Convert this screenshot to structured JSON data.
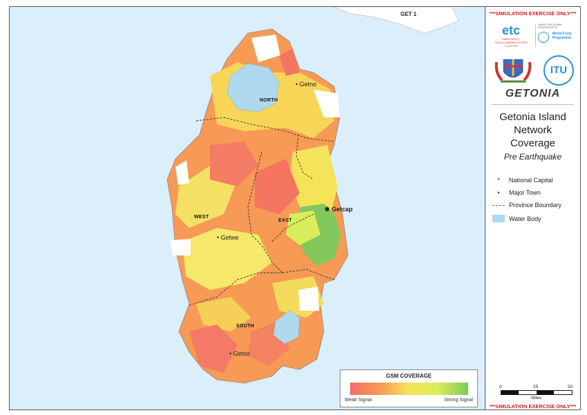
{
  "map": {
    "region_label_get1": "GET 1",
    "towns": [
      {
        "name": "Getno"
      },
      {
        "name": "Getcap"
      },
      {
        "name": "Getwe"
      },
      {
        "name": "Getso"
      }
    ],
    "provinces": [
      "NORTH",
      "WEST",
      "EAST",
      "SOUTH"
    ]
  },
  "legend": {
    "title": "GSM COVERAGE",
    "weak_label": "Weak Signal",
    "strong_label": "Strong Signal",
    "colors": [
      "#f46d6d",
      "#f59b52",
      "#f5e45a",
      "#d9ec5c",
      "#7fc95a"
    ]
  },
  "panel": {
    "banner_top": "***SIMULATION EXERCISE ONLY***",
    "banner_bottom": "***SIMULATION EXERCISE ONLY***",
    "logo_etc": "etc",
    "logo_etc_caption": "EMERGENCY TELECOMMUNICATIONS CLUSTER",
    "logo_wfp": "World Food Programme",
    "logo_wfp_caption": "UNDER THE GLOBAL LEADERSHIP OF",
    "logo_itu": "ITU",
    "country": "GETONIA",
    "title": "Getonia Island\nNetwork\nCoverage",
    "subtitle": "Pre Earthquake",
    "key": [
      {
        "symbol": "*",
        "label": "National Capital"
      },
      {
        "symbol": "•",
        "label": "Major Town"
      },
      {
        "symbol": "dash",
        "label": "Province Boundary"
      },
      {
        "symbol": "box",
        "label": "Water Body"
      }
    ],
    "scale": {
      "ticks": [
        "0",
        "25",
        "50"
      ],
      "unit": "Miles"
    }
  },
  "colors": {
    "water": "#dbeefb",
    "lake": "#aed9ee",
    "banner": "#d32020"
  }
}
